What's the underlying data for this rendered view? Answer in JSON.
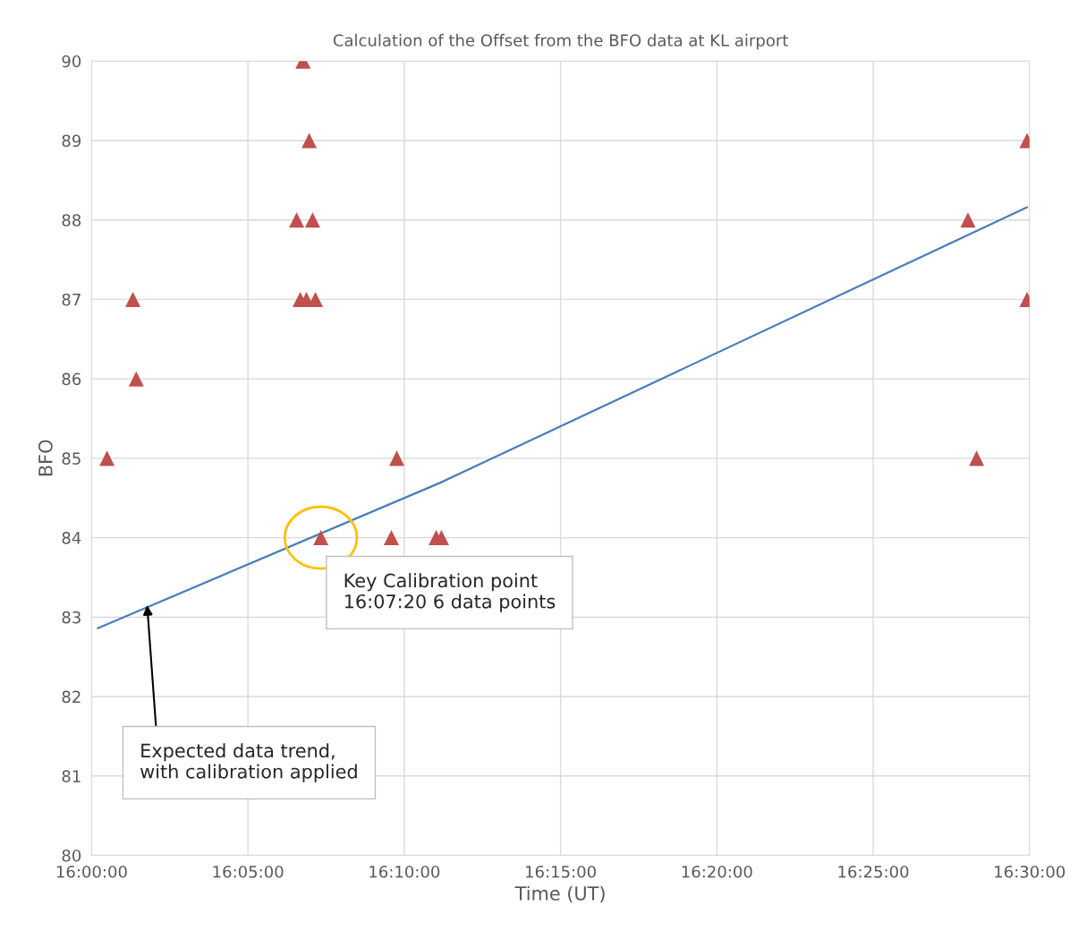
{
  "chart_data": {
    "type": "scatter",
    "title": "Calculation of the Offset from the BFO data at KL airport",
    "xlabel": "Time (UT)",
    "ylabel": "BFO",
    "series": [
      {
        "color": "#c0504d",
        "marker": "triangle",
        "x": [
          16.0082,
          16.022,
          16.0238,
          16.1127,
          16.116,
          16.1093,
          16.1178,
          16.1112,
          16.1145,
          16.1193,
          16.1222,
          16.1598,
          16.1627,
          16.1837,
          16.1865,
          16.4672,
          16.4718,
          16.4987,
          16.4987
        ],
        "values": [
          85,
          87,
          86,
          90,
          89,
          88,
          88,
          87,
          87,
          87,
          84,
          84,
          85,
          84,
          84,
          88,
          85,
          89,
          87
        ]
      },
      {
        "type": "line",
        "color": "#4a7ebb",
        "marker": "none",
        "line_style": "solid",
        "x": [
          16.0033,
          16.1857,
          16.4987
        ],
        "values": [
          82.86,
          84.69,
          88.16
        ]
      }
    ],
    "xlim": [
      16,
      16.5
    ],
    "xticks": [
      {
        "value": 16,
        "label": "16:00:00"
      },
      {
        "value": 16.0833333,
        "label": "16:05:00"
      },
      {
        "value": 16.1666667,
        "label": "16:10:00"
      },
      {
        "value": 16.25,
        "label": "16:15:00"
      },
      {
        "value": 16.3333333,
        "label": "16:20:00"
      },
      {
        "value": 16.4166667,
        "label": "16:25:00"
      },
      {
        "value": 16.5,
        "label": "16:30:00"
      }
    ],
    "ylim": [
      80,
      90
    ],
    "yticks": [
      80,
      81,
      82,
      83,
      84,
      85,
      86,
      87,
      88,
      89,
      90
    ],
    "grid": true,
    "legend": false,
    "annotations": [
      {
        "text": "Key Calibration point\n16:07:20 6 data points",
        "x": 16.1222,
        "y": 84
      },
      {
        "text": "Expected data trend,\nwith calibration applied",
        "x": 16.0296,
        "y": 83.15
      }
    ]
  }
}
